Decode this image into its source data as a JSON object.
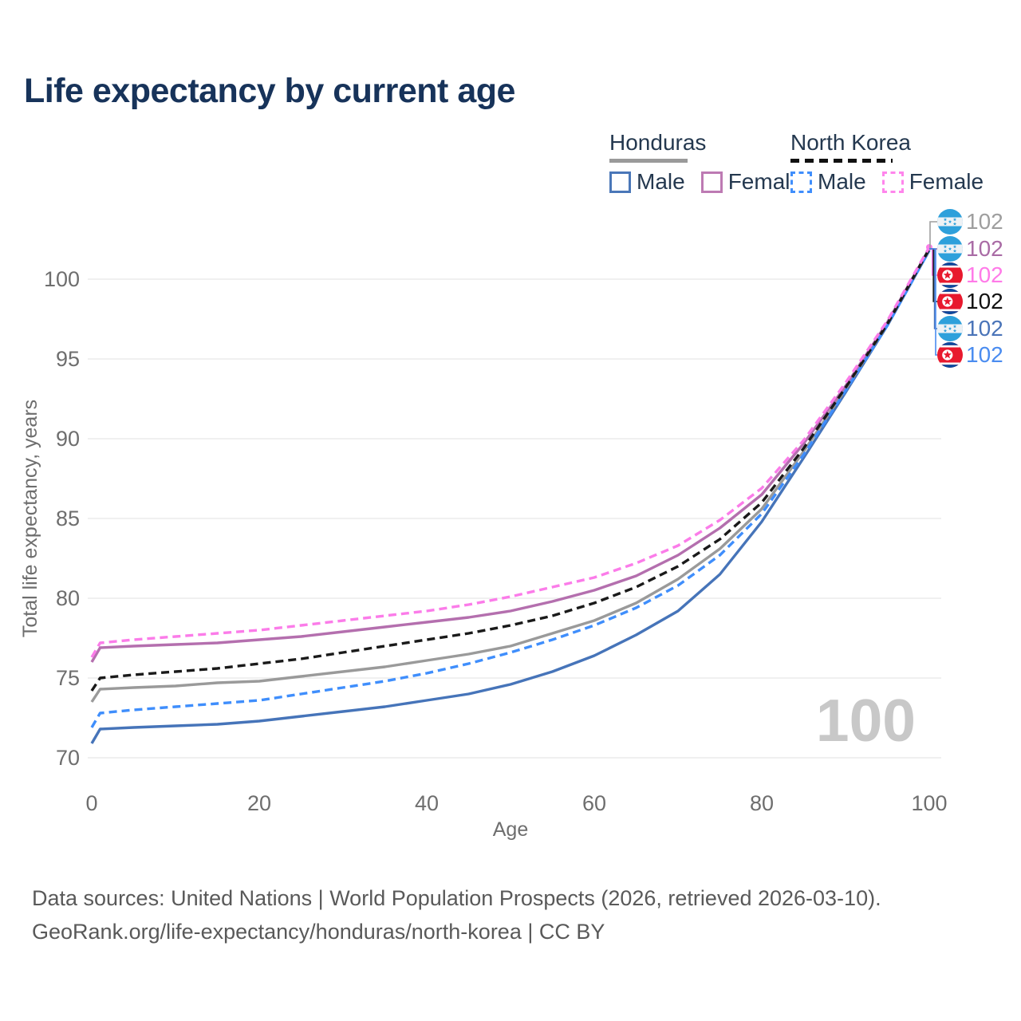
{
  "title": "Life expectancy by current age",
  "watermark": "100",
  "legend": {
    "groups": [
      {
        "name": "Honduras",
        "line_style": "solid",
        "line_color": "#9a9a9a",
        "items": [
          {
            "label": "Male",
            "color": "#4a77b8",
            "dash": false
          },
          {
            "label": "Female",
            "color": "#bd7ab3",
            "dash": false
          }
        ]
      },
      {
        "name": "North Korea",
        "line_style": "dashed",
        "line_color": "#111111",
        "items": [
          {
            "label": "Male",
            "color": "#3f8efc",
            "dash": true
          },
          {
            "label": "Female",
            "color": "#ff85ec",
            "dash": true
          }
        ]
      }
    ]
  },
  "axes": {
    "y_title": "Total life expectancy, years",
    "x_title": "Age",
    "y_ticks": [
      70,
      75,
      80,
      85,
      90,
      95,
      100
    ],
    "x_ticks": [
      0,
      20,
      40,
      60,
      80,
      100
    ]
  },
  "right_labels": [
    {
      "series": "Honduras",
      "flag": "honduras",
      "value": "102",
      "color": "#9e9e9e"
    },
    {
      "series": "Honduras Female",
      "flag": "honduras",
      "value": "102",
      "color": "#a96ba5"
    },
    {
      "series": "North Korea Female",
      "flag": "north_korea",
      "value": "102",
      "color": "#ff7ae8"
    },
    {
      "series": "North Korea",
      "flag": "north_korea",
      "value": "102",
      "color": "#111111"
    },
    {
      "series": "Honduras Male",
      "flag": "honduras",
      "value": "102",
      "color": "#4a74b8"
    },
    {
      "series": "North Korea Male",
      "flag": "north_korea",
      "value": "102",
      "color": "#4a8cf0"
    }
  ],
  "flags": {
    "honduras": {
      "blue": "#2ea0db",
      "white": "#eef2f5"
    },
    "north_korea": {
      "blue": "#0b4a9f",
      "red": "#e8192e",
      "white": "#ffffff"
    }
  },
  "footer": {
    "line1": "Data sources: United Nations | World Population Prospects (2026, retrieved 2026-03-10).",
    "line2": "GeoRank.org/life-expectancy/honduras/north-korea | CC BY"
  },
  "chart_data": {
    "type": "line",
    "title": "Life expectancy by current age",
    "xlabel": "Age",
    "ylabel": "Total life expectancy, years",
    "xlim": [
      0,
      100
    ],
    "ylim": [
      70,
      102
    ],
    "grid": true,
    "legend_position": "top-right",
    "x": [
      0,
      1,
      5,
      10,
      15,
      20,
      25,
      30,
      35,
      40,
      45,
      50,
      55,
      60,
      65,
      70,
      75,
      80,
      85,
      90,
      95,
      100
    ],
    "series": [
      {
        "id": "honduras-male",
        "name": "Honduras Male",
        "country": "Honduras",
        "sex": "Male",
        "color": "#4674b9",
        "dash": false,
        "values": [
          70.9,
          71.8,
          71.9,
          72.0,
          72.1,
          72.3,
          72.6,
          72.9,
          73.2,
          73.6,
          74.0,
          74.6,
          75.4,
          76.4,
          77.7,
          79.2,
          81.5,
          84.8,
          88.8,
          92.9,
          97.1,
          101.8
        ]
      },
      {
        "id": "honduras-total",
        "name": "Honduras",
        "country": "Honduras",
        "sex": "Both",
        "color": "#9a9a9a",
        "dash": false,
        "values": [
          73.5,
          74.3,
          74.4,
          74.5,
          74.7,
          74.8,
          75.1,
          75.4,
          75.7,
          76.1,
          76.5,
          77.0,
          77.8,
          78.6,
          79.7,
          81.2,
          83.1,
          85.6,
          89.2,
          93.1,
          97.2,
          101.9
        ]
      },
      {
        "id": "honduras-female",
        "name": "Honduras Female",
        "country": "Honduras",
        "sex": "Female",
        "color": "#b46fae",
        "dash": false,
        "values": [
          76.0,
          76.9,
          77.0,
          77.1,
          77.2,
          77.4,
          77.6,
          77.9,
          78.2,
          78.5,
          78.8,
          79.2,
          79.8,
          80.5,
          81.4,
          82.7,
          84.4,
          86.5,
          89.7,
          93.3,
          97.3,
          101.9
        ]
      },
      {
        "id": "north-korea-male",
        "name": "North Korea Male",
        "country": "North Korea",
        "sex": "Male",
        "color": "#3f8efc",
        "dash": true,
        "values": [
          71.9,
          72.8,
          73.0,
          73.2,
          73.4,
          73.6,
          74.0,
          74.4,
          74.8,
          75.3,
          75.9,
          76.6,
          77.4,
          78.3,
          79.4,
          80.8,
          82.7,
          85.3,
          89.0,
          93.0,
          97.1,
          101.8
        ]
      },
      {
        "id": "north-korea-total",
        "name": "North Korea",
        "country": "North Korea",
        "sex": "Both",
        "color": "#1a1a1a",
        "dash": true,
        "values": [
          74.2,
          75.0,
          75.2,
          75.4,
          75.6,
          75.9,
          76.2,
          76.6,
          77.0,
          77.4,
          77.8,
          78.3,
          78.9,
          79.7,
          80.7,
          82.0,
          83.7,
          86.0,
          89.4,
          93.2,
          97.2,
          101.9
        ]
      },
      {
        "id": "north-korea-female",
        "name": "North Korea Female",
        "country": "North Korea",
        "sex": "Female",
        "color": "#fb7ce9",
        "dash": true,
        "values": [
          76.3,
          77.2,
          77.4,
          77.6,
          77.8,
          78.0,
          78.3,
          78.6,
          78.9,
          79.2,
          79.6,
          80.1,
          80.7,
          81.3,
          82.2,
          83.3,
          84.9,
          86.9,
          89.9,
          93.5,
          97.4,
          102.0
        ]
      }
    ]
  }
}
